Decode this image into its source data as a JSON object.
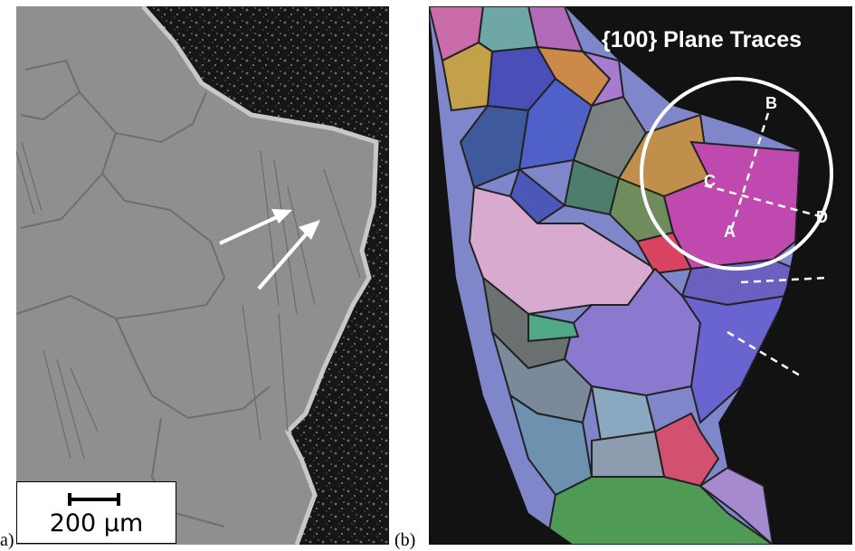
{
  "panel_a": {
    "label": "a)",
    "scale_bar_text": "200 μm"
  },
  "panel_b": {
    "label": "(b)",
    "title": "{100} Plane Traces",
    "points": {
      "a": "A",
      "b": "B",
      "c": "C",
      "d": "D"
    }
  },
  "colors": {
    "sem_background": "#8e8e8e",
    "dark_background": "#121212",
    "circle": "#ffffff"
  }
}
